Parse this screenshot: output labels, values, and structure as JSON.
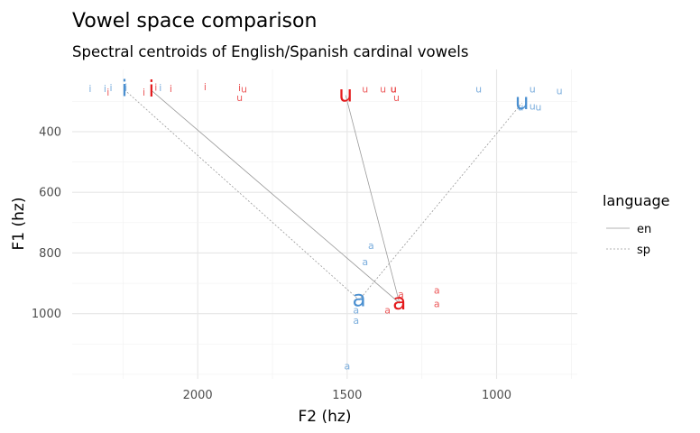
{
  "chart_data": {
    "type": "scatter",
    "title": "Vowel space comparison",
    "subtitle": "Spectral centroids of English/Spanish cardinal vowels",
    "xlabel": "F2 (hz)",
    "ylabel": "F1 (hz)",
    "x_reversed": true,
    "y_reversed": true,
    "xlim": [
      2420,
      730
    ],
    "ylim": [
      195,
      1215
    ],
    "x_ticks": [
      2000,
      1500,
      1000
    ],
    "y_ticks": [
      400,
      600,
      800,
      1000
    ],
    "grid": true,
    "legend": {
      "title": "language",
      "position": "right",
      "entries": [
        "en",
        "sp"
      ]
    },
    "colors": {
      "en": "#e41a1c",
      "sp": "#4a8fd0"
    },
    "tokens": [
      {
        "label": "i",
        "lang": "sp",
        "x": 2360,
        "y": 260
      },
      {
        "label": "i",
        "lang": "sp",
        "x": 2310,
        "y": 260
      },
      {
        "label": "i",
        "lang": "sp",
        "x": 2290,
        "y": 258
      },
      {
        "label": "i",
        "lang": "en",
        "x": 2300,
        "y": 272
      },
      {
        "label": "i",
        "lang": "sp",
        "x": 2240,
        "y": 256
      },
      {
        "label": "i",
        "lang": "en",
        "x": 2180,
        "y": 272
      },
      {
        "label": "i",
        "lang": "en",
        "x": 2140,
        "y": 256
      },
      {
        "label": "i",
        "lang": "sp",
        "x": 2125,
        "y": 258
      },
      {
        "label": "i",
        "lang": "en",
        "x": 2090,
        "y": 260
      },
      {
        "label": "i",
        "lang": "en",
        "x": 1975,
        "y": 255
      },
      {
        "label": "i",
        "lang": "en",
        "x": 1860,
        "y": 258
      },
      {
        "label": "u",
        "lang": "en",
        "x": 1845,
        "y": 262
      },
      {
        "label": "u",
        "lang": "en",
        "x": 1860,
        "y": 290
      },
      {
        "label": "u",
        "lang": "en",
        "x": 1440,
        "y": 262
      },
      {
        "label": "u",
        "lang": "en",
        "x": 1380,
        "y": 262
      },
      {
        "label": "u",
        "lang": "en",
        "x": 1345,
        "y": 262
      },
      {
        "label": "u",
        "lang": "en",
        "x": 1345,
        "y": 262
      },
      {
        "label": "u",
        "lang": "en",
        "x": 1335,
        "y": 290
      },
      {
        "label": "u",
        "lang": "sp",
        "x": 1060,
        "y": 262
      },
      {
        "label": "u",
        "lang": "sp",
        "x": 880,
        "y": 262
      },
      {
        "label": "u",
        "lang": "sp",
        "x": 790,
        "y": 268
      },
      {
        "label": "u",
        "lang": "sp",
        "x": 880,
        "y": 318
      },
      {
        "label": "u",
        "lang": "sp",
        "x": 860,
        "y": 322
      },
      {
        "label": "u",
        "lang": "sp",
        "x": 920,
        "y": 322
      },
      {
        "label": "a",
        "lang": "sp",
        "x": 1420,
        "y": 778
      },
      {
        "label": "a",
        "lang": "sp",
        "x": 1440,
        "y": 832
      },
      {
        "label": "a",
        "lang": "en",
        "x": 1320,
        "y": 938
      },
      {
        "label": "a",
        "lang": "en",
        "x": 1200,
        "y": 925
      },
      {
        "label": "a",
        "lang": "en",
        "x": 1200,
        "y": 970
      },
      {
        "label": "a",
        "lang": "en",
        "x": 1365,
        "y": 990
      },
      {
        "label": "a",
        "lang": "sp",
        "x": 1470,
        "y": 990
      },
      {
        "label": "a",
        "lang": "sp",
        "x": 1470,
        "y": 1025
      },
      {
        "label": "a",
        "lang": "sp",
        "x": 1500,
        "y": 1175
      }
    ],
    "centroids": [
      {
        "label": "i",
        "lang": "sp",
        "x": 2245,
        "y": 262
      },
      {
        "label": "i",
        "lang": "en",
        "x": 2155,
        "y": 264
      },
      {
        "label": "u",
        "lang": "en",
        "x": 1505,
        "y": 280
      },
      {
        "label": "u",
        "lang": "sp",
        "x": 915,
        "y": 305
      },
      {
        "label": "a",
        "lang": "sp",
        "x": 1460,
        "y": 955
      },
      {
        "label": "a",
        "lang": "en",
        "x": 1325,
        "y": 965
      }
    ]
  }
}
